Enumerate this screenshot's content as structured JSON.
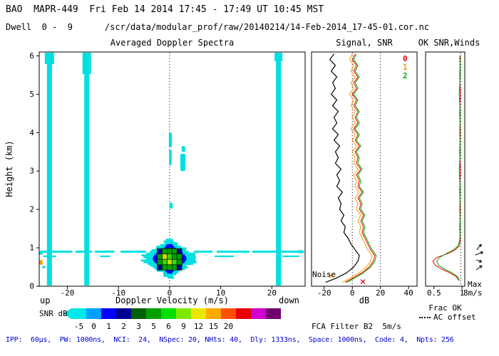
{
  "header": {
    "line1": "BAO  MAPR-449  Fri Feb 14 2014 17:45 - 17:49 UT 10:45 MST",
    "dwell": "Dwell  0 -  9",
    "file_path": "/scr/data/modular_prof/raw/20140214/14-Feb-2014_17-45-01.cor.nc"
  },
  "footer": {
    "acquisition_params": "IPP:  60µs,  PW: 1000ns,  NCI:  24,  NSpec: 20, NHts: 40,  Dly: 1333ns,  Space: 1000ns,  Code: 4,  Npts: 256",
    "fca_filter": "FCA Filter B2  5m/s"
  },
  "colorbar": {
    "label": "SNR dB",
    "tick_labels": [
      "-5",
      "0",
      "1",
      "2",
      "3",
      "5",
      "6",
      "9",
      "12",
      "15",
      "20"
    ],
    "colors": [
      "#00e8e8",
      "#00a0ff",
      "#0000ff",
      "#000090",
      "#006000",
      "#00a000",
      "#00e000",
      "#80e800",
      "#e8e800",
      "#ffa800",
      "#ff5000",
      "#e80000",
      "#d000d0",
      "#700070"
    ]
  },
  "chart_data": [
    {
      "id": "doppler_spectra",
      "type": "heatmap",
      "title": "Averaged Doppler Spectra",
      "xlabel": "Doppler Velocity (m/s)",
      "ylabel": "Height (km)",
      "up_label": "up",
      "down_label": "down",
      "xlim": [
        -25.5,
        26.5
      ],
      "ylim": [
        0,
        6.1
      ],
      "xticks": [
        -20,
        -10,
        0,
        10,
        20
      ],
      "yticks": [
        0,
        1,
        2,
        3,
        4,
        5,
        6
      ],
      "zero_line_velocity": 0,
      "interference_bands_ms": [
        -23.5,
        -16.2,
        21.3
      ],
      "clutter_layers": [
        {
          "height_km": 0.9,
          "thickness_km": 0.055,
          "segments_ms": [
            [
              -25.3,
              -19.0
            ],
            [
              -18.4,
              -15.2
            ],
            [
              -14.6,
              -10.8
            ],
            [
              -9.6,
              -4.6
            ],
            [
              4.8,
              8.4
            ],
            [
              9.2,
              15.6
            ],
            [
              16.2,
              26.3
            ]
          ]
        },
        {
          "height_km": 0.78,
          "thickness_km": 0.04,
          "segments_ms": [
            [
              -24.7,
              -22.2
            ],
            [
              -13.6,
              -11.6
            ],
            [
              -3.4,
              -2.2
            ],
            [
              8.8,
              12.6
            ],
            [
              22.1,
              25.4
            ]
          ]
        }
      ],
      "echo": {
        "center_velocity_ms": 0,
        "height_center_km": 0.72,
        "height_range_km": [
          0.22,
          1.32
        ],
        "layers": [
          {
            "color": "#00e0e0",
            "halfwidth_ms": 4.7,
            "sigma_km": 0.34
          },
          {
            "color": "#0000ff",
            "halfwidth_ms": 3.3,
            "sigma_km": 0.27
          },
          {
            "color": "#000090",
            "halfwidth_ms": 2.7,
            "sigma_km": 0.22
          }
        ],
        "core": {
          "velocity_range_ms": [
            -2.4,
            2.4
          ],
          "height_range_km": [
            0.42,
            0.98
          ],
          "cells": [
            [
              "n",
              "g",
              "g",
              "g",
              "n"
            ],
            [
              "g",
              "y",
              "l",
              "g",
              "g"
            ],
            [
              "g",
              "l",
              "y",
              "l",
              "g"
            ],
            [
              "n",
              "g",
              "g",
              "g",
              "n"
            ]
          ],
          "palette": {
            "n": "#000090",
            "g": "#00a000",
            "l": "#38d800",
            "y": "#d8d800"
          }
        }
      },
      "upper_echoes": [
        {
          "velocity_ms": 0.15,
          "height_range_km": [
            3.62,
            4.0
          ],
          "width_ms": 0.6
        },
        {
          "velocity_ms": 0.15,
          "height_range_km": [
            3.15,
            3.55
          ],
          "width_ms": 0.5
        },
        {
          "velocity_ms": 2.6,
          "height_range_km": [
            3.0,
            3.45
          ],
          "width_ms": 1.0
        },
        {
          "velocity_ms": 2.7,
          "height_range_km": [
            3.5,
            3.65
          ],
          "width_ms": 0.7
        },
        {
          "velocity_ms": 0.3,
          "height_range_km": [
            2.02,
            2.18
          ],
          "width_ms": 0.6
        }
      ],
      "edge_echoes": [
        {
          "velocity_ms": -25.2,
          "height_km": 0.62,
          "w_ms": 0.7,
          "h_km": 0.12,
          "color": "#ff9800"
        },
        {
          "velocity_ms": -25.2,
          "height_km": 0.86,
          "w_ms": 0.8,
          "h_km": 0.07,
          "color": "#00e0e0"
        },
        {
          "velocity_ms": -24.6,
          "height_km": 0.5,
          "w_ms": 0.6,
          "h_km": 0.06,
          "color": "#00e0e0"
        },
        {
          "velocity_ms": 25.6,
          "height_km": 0.9,
          "w_ms": 0.9,
          "h_km": 0.08,
          "color": "#00e0e0"
        }
      ]
    },
    {
      "id": "signal_snr",
      "type": "line",
      "title": "Signal, SNR",
      "xlabel": "dB",
      "xlim": [
        -29,
        46
      ],
      "xticks": [
        -20,
        0,
        20,
        40
      ],
      "dotted_gridlines_db": [
        0,
        20
      ],
      "noise_label": "Noise",
      "legend": [
        {
          "label": "0",
          "color": "#e80000"
        },
        {
          "label": "1",
          "color": "#ff9800"
        },
        {
          "label": "2",
          "color": "#00a800"
        }
      ],
      "heights_km": [
        6.05,
        5.9,
        5.75,
        5.6,
        5.45,
        5.3,
        5.15,
        5.0,
        4.85,
        4.7,
        4.55,
        4.4,
        4.25,
        4.1,
        3.95,
        3.8,
        3.65,
        3.5,
        3.35,
        3.2,
        3.05,
        2.9,
        2.75,
        2.6,
        2.45,
        2.3,
        2.15,
        2.0,
        1.85,
        1.7,
        1.55,
        1.4,
        1.25,
        1.1,
        0.95,
        0.8,
        0.65,
        0.5,
        0.35,
        0.2,
        0.1
      ],
      "series": [
        {
          "name": "Signal",
          "color": "#000000",
          "values_db": [
            -13,
            -16,
            -12,
            -15,
            -11,
            -14,
            -12,
            -15,
            -11,
            -14,
            -10,
            -13,
            -11,
            -14,
            -10,
            -13,
            -9,
            -12,
            -10,
            -12,
            -8,
            -11,
            -9,
            -11,
            -7,
            -10,
            -8,
            -9,
            -6,
            -8,
            -5,
            -6,
            -3,
            -1,
            2,
            5,
            4,
            1,
            -4,
            -12,
            -19
          ]
        },
        {
          "name": "SNR 0",
          "color": "#e80000",
          "values_db": [
            2,
            0,
            3,
            1,
            4,
            1,
            3,
            0,
            3,
            1,
            4,
            2,
            4,
            1,
            4,
            2,
            5,
            2,
            4,
            3,
            6,
            3,
            5,
            4,
            7,
            4,
            6,
            5,
            8,
            6,
            8,
            7,
            9,
            11,
            13,
            16,
            15,
            12,
            7,
            0,
            -5
          ]
        },
        {
          "name": "SNR 1",
          "color": "#ff9800",
          "values_db": [
            0,
            -2,
            1,
            -1,
            2,
            -1,
            1,
            -2,
            1,
            -1,
            2,
            0,
            2,
            -1,
            2,
            0,
            3,
            0,
            2,
            1,
            4,
            1,
            3,
            2,
            5,
            2,
            4,
            3,
            6,
            4,
            6,
            5,
            7,
            9,
            11,
            14,
            13,
            10,
            5,
            -2,
            -7
          ]
        },
        {
          "name": "SNR 2",
          "color": "#00a800",
          "values_db": [
            3,
            1,
            4,
            2,
            5,
            2,
            4,
            1,
            4,
            2,
            5,
            3,
            5,
            2,
            5,
            3,
            6,
            3,
            5,
            4,
            7,
            4,
            6,
            5,
            8,
            5,
            7,
            6,
            9,
            7,
            9,
            8,
            10,
            12,
            14,
            17,
            16,
            13,
            8,
            1,
            -4
          ]
        }
      ],
      "noise_markers": [
        {
          "db": -15,
          "height_km": 0.28,
          "color": "#ff9800"
        },
        {
          "db": 7.5,
          "height_km": 0.12,
          "color": "#e80000"
        }
      ]
    },
    {
      "id": "ok_snr_winds",
      "type": "line",
      "title": "OK SNR,Winds",
      "xlabel": "Frac OK",
      "xlim": [
        0.35,
        1.05
      ],
      "xticks": [
        0.5,
        1
      ],
      "ac_offset_value": 0.98,
      "ac_offset_label": "AC offset",
      "max_label": "Max",
      "max_value": "8m/s",
      "heights_km": [
        6.0,
        5.5,
        5.0,
        4.5,
        4.0,
        3.5,
        3.0,
        2.5,
        2.0,
        1.5,
        1.2,
        1.05,
        0.95,
        0.85,
        0.75,
        0.65,
        0.55,
        0.45,
        0.35,
        0.25,
        0.15
      ],
      "series": [
        {
          "name": "Frac OK 0",
          "color": "#e80000",
          "values": [
            0.97,
            0.96,
            0.97,
            0.96,
            0.97,
            0.96,
            0.97,
            0.96,
            0.97,
            0.96,
            0.97,
            0.95,
            0.88,
            0.75,
            0.55,
            0.48,
            0.52,
            0.63,
            0.78,
            0.9,
            0.94
          ]
        },
        {
          "name": "Frac OK 2",
          "color": "#00a800",
          "values": [
            0.96,
            0.97,
            0.95,
            0.97,
            0.96,
            0.97,
            0.95,
            0.97,
            0.96,
            0.97,
            0.96,
            0.93,
            0.85,
            0.72,
            0.6,
            0.55,
            0.58,
            0.68,
            0.82,
            0.92,
            0.95
          ]
        }
      ],
      "wind_barbs": [
        {
          "height_km": 1.02,
          "dir_deg": 50,
          "speed_ms": 5
        },
        {
          "height_km": 0.85,
          "dir_deg": 20,
          "speed_ms": 6
        },
        {
          "height_km": 0.66,
          "dir_deg": 340,
          "speed_ms": 4
        },
        {
          "height_km": 0.48,
          "dir_deg": 35,
          "speed_ms": 5
        }
      ]
    }
  ]
}
